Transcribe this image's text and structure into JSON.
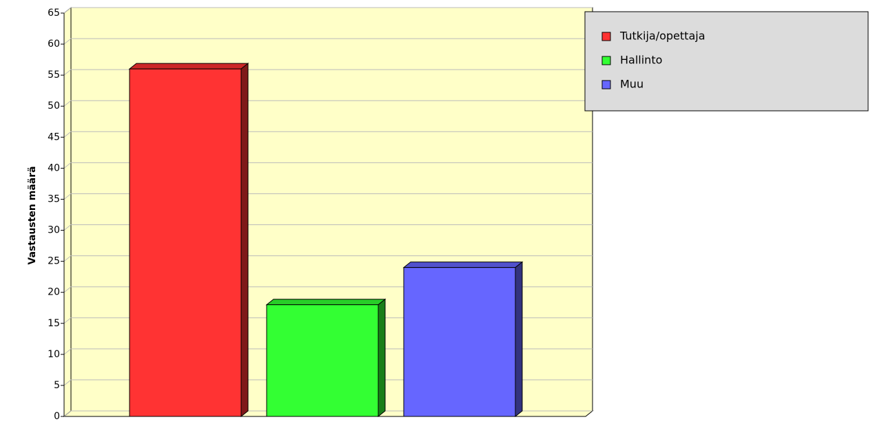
{
  "chart_data": {
    "type": "bar",
    "y_label": "Vastausten määrä",
    "series": [
      {
        "name": "Tutkija/opettaja",
        "color": "#ff3333",
        "values": [
          56
        ]
      },
      {
        "name": "Hallinto",
        "color": "#33ff33",
        "values": [
          18
        ]
      },
      {
        "name": "Muu",
        "color": "#6666ff",
        "values": [
          24
        ]
      }
    ],
    "ylim": [
      0,
      65
    ],
    "yticks": [
      0,
      5,
      10,
      15,
      20,
      25,
      30,
      35,
      40,
      45,
      50,
      55,
      60,
      65
    ],
    "grid": true,
    "legend": "top-right"
  }
}
